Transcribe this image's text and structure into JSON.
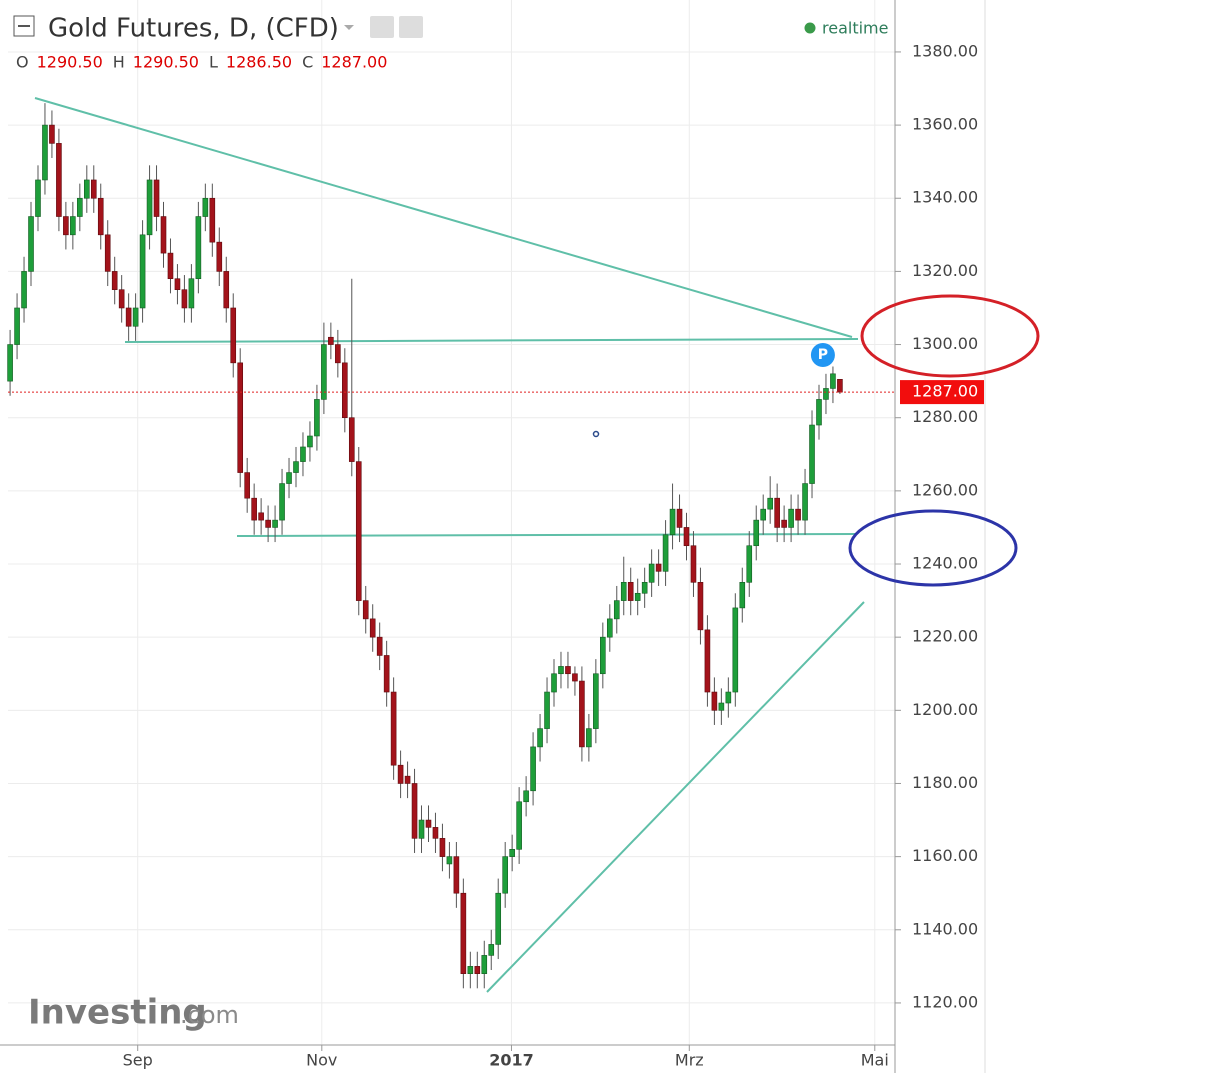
{
  "chart_data": {
    "type": "candlestick",
    "title": "Gold Futures, D, (CFD)",
    "status": "realtime",
    "ohlc_legend": [
      [
        "O",
        "1290.50"
      ],
      [
        "H",
        "1290.50"
      ],
      [
        "L",
        "1286.50"
      ],
      [
        "C",
        "1287.00"
      ]
    ],
    "last_price": {
      "value": 1287,
      "label": "1287.00"
    },
    "marker": "P",
    "watermark": [
      "Investing",
      ".com"
    ],
    "up_color": "#1e9e3a",
    "down_color": "#a3131b",
    "grid": true,
    "ylim": [
      1108.5,
      1394.2
    ],
    "yticks": [
      {
        "value": 1120,
        "label": "1120.00"
      },
      {
        "value": 1140,
        "label": "1140.00"
      },
      {
        "value": 1160,
        "label": "1160.00"
      },
      {
        "value": 1180,
        "label": "1180.00"
      },
      {
        "value": 1200,
        "label": "1200.00"
      },
      {
        "value": 1220,
        "label": "1220.00"
      },
      {
        "value": 1240,
        "label": "1240.00"
      },
      {
        "value": 1260,
        "label": "1260.00"
      },
      {
        "value": 1280,
        "label": "1280.00"
      },
      {
        "value": 1300,
        "label": "1300.00"
      },
      {
        "value": 1320,
        "label": "1320.00"
      },
      {
        "value": 1340,
        "label": "1340.00"
      },
      {
        "value": 1360,
        "label": "1360.00"
      },
      {
        "value": 1380,
        "label": "1380.00"
      }
    ],
    "xlim": [
      -0.3,
      126.9
    ],
    "xticks": [
      {
        "value": 18.3,
        "label": "Sep"
      },
      {
        "value": 44.7,
        "label": "Nov"
      },
      {
        "value": 71.9,
        "label": "2017"
      },
      {
        "value": 97.4,
        "label": "Mrz"
      },
      {
        "value": 124,
        "label": "Mai"
      }
    ],
    "candles": [
      [
        1290,
        1304,
        1286,
        1300
      ],
      [
        1300,
        1314,
        1296,
        1310
      ],
      [
        1310,
        1324,
        1306,
        1320
      ],
      [
        1320,
        1339,
        1316,
        1335
      ],
      [
        1335,
        1349,
        1331,
        1345
      ],
      [
        1345,
        1366,
        1341,
        1360
      ],
      [
        1360,
        1364,
        1351,
        1355
      ],
      [
        1355,
        1359,
        1331,
        1335
      ],
      [
        1335,
        1339,
        1326,
        1330
      ],
      [
        1330,
        1339,
        1326,
        1335
      ],
      [
        1335,
        1344,
        1331,
        1340
      ],
      [
        1340,
        1349,
        1336,
        1345
      ],
      [
        1345,
        1349,
        1336,
        1340
      ],
      [
        1340,
        1344,
        1326,
        1330
      ],
      [
        1330,
        1334,
        1316,
        1320
      ],
      [
        1320,
        1324,
        1311,
        1315
      ],
      [
        1315,
        1319,
        1306,
        1310
      ],
      [
        1310,
        1314,
        1301,
        1305
      ],
      [
        1305,
        1314,
        1301,
        1310
      ],
      [
        1310,
        1334,
        1306,
        1330
      ],
      [
        1330,
        1349,
        1326,
        1345
      ],
      [
        1345,
        1349,
        1331,
        1335
      ],
      [
        1335,
        1339,
        1321,
        1325
      ],
      [
        1325,
        1329,
        1314,
        1318
      ],
      [
        1318,
        1322,
        1311,
        1315
      ],
      [
        1315,
        1319,
        1306,
        1310
      ],
      [
        1310,
        1322,
        1306,
        1318
      ],
      [
        1318,
        1339,
        1314,
        1335
      ],
      [
        1335,
        1344,
        1331,
        1340
      ],
      [
        1340,
        1344,
        1324,
        1328
      ],
      [
        1328,
        1332,
        1316,
        1320
      ],
      [
        1320,
        1324,
        1306,
        1310
      ],
      [
        1310,
        1314,
        1291,
        1295
      ],
      [
        1295,
        1299,
        1261,
        1265
      ],
      [
        1265,
        1269,
        1254,
        1258
      ],
      [
        1258,
        1262,
        1248,
        1252
      ],
      [
        1254,
        1258,
        1248,
        1252
      ],
      [
        1252,
        1256,
        1246,
        1250
      ],
      [
        1250,
        1256,
        1246,
        1252
      ],
      [
        1252,
        1266,
        1248,
        1262
      ],
      [
        1262,
        1269,
        1258,
        1265
      ],
      [
        1265,
        1272,
        1261,
        1268
      ],
      [
        1268,
        1276,
        1264,
        1272
      ],
      [
        1272,
        1279,
        1268,
        1275
      ],
      [
        1275,
        1289,
        1271,
        1285
      ],
      [
        1285,
        1306,
        1281,
        1300
      ],
      [
        1302,
        1306,
        1296,
        1300
      ],
      [
        1300,
        1304,
        1291,
        1295
      ],
      [
        1295,
        1299,
        1276,
        1280
      ],
      [
        1280,
        1318,
        1264,
        1268
      ],
      [
        1268,
        1272,
        1226,
        1230
      ],
      [
        1230,
        1234,
        1221,
        1225
      ],
      [
        1225,
        1229,
        1216,
        1220
      ],
      [
        1220,
        1224,
        1211,
        1215
      ],
      [
        1215,
        1219,
        1201,
        1205
      ],
      [
        1205,
        1209,
        1181,
        1185
      ],
      [
        1185,
        1189,
        1176,
        1180
      ],
      [
        1182,
        1186,
        1176,
        1180
      ],
      [
        1180,
        1184,
        1161,
        1165
      ],
      [
        1165,
        1174,
        1161,
        1170
      ],
      [
        1170,
        1174,
        1164,
        1168
      ],
      [
        1168,
        1172,
        1161,
        1165
      ],
      [
        1165,
        1169,
        1156,
        1160
      ],
      [
        1158,
        1164,
        1154,
        1160
      ],
      [
        1160,
        1164,
        1146,
        1150
      ],
      [
        1150,
        1154,
        1124,
        1128
      ],
      [
        1128,
        1134,
        1124,
        1130
      ],
      [
        1130,
        1134,
        1124,
        1128
      ],
      [
        1128,
        1137,
        1124,
        1133
      ],
      [
        1133,
        1140,
        1129,
        1136
      ],
      [
        1136,
        1154,
        1132,
        1150
      ],
      [
        1150,
        1164,
        1146,
        1160
      ],
      [
        1160,
        1166,
        1156,
        1162
      ],
      [
        1162,
        1179,
        1158,
        1175
      ],
      [
        1175,
        1182,
        1171,
        1178
      ],
      [
        1178,
        1194,
        1174,
        1190
      ],
      [
        1190,
        1199,
        1186,
        1195
      ],
      [
        1195,
        1209,
        1191,
        1205
      ],
      [
        1205,
        1214,
        1201,
        1210
      ],
      [
        1210,
        1216,
        1206,
        1212
      ],
      [
        1212,
        1216,
        1206,
        1210
      ],
      [
        1210,
        1212,
        1204,
        1208
      ],
      [
        1208,
        1212,
        1186,
        1190
      ],
      [
        1190,
        1199,
        1186,
        1195
      ],
      [
        1195,
        1214,
        1191,
        1210
      ],
      [
        1210,
        1224,
        1206,
        1220
      ],
      [
        1220,
        1229,
        1216,
        1225
      ],
      [
        1225,
        1234,
        1221,
        1230
      ],
      [
        1230,
        1242,
        1226,
        1235
      ],
      [
        1235,
        1239,
        1226,
        1230
      ],
      [
        1230,
        1236,
        1226,
        1232
      ],
      [
        1232,
        1239,
        1228,
        1235
      ],
      [
        1235,
        1244,
        1231,
        1240
      ],
      [
        1240,
        1244,
        1234,
        1238
      ],
      [
        1238,
        1252,
        1234,
        1248
      ],
      [
        1248,
        1262,
        1244,
        1255
      ],
      [
        1255,
        1259,
        1246,
        1250
      ],
      [
        1250,
        1254,
        1241,
        1245
      ],
      [
        1245,
        1249,
        1231,
        1235
      ],
      [
        1235,
        1239,
        1218,
        1222
      ],
      [
        1222,
        1226,
        1201,
        1205
      ],
      [
        1205,
        1209,
        1196,
        1200
      ],
      [
        1200,
        1206,
        1196,
        1202
      ],
      [
        1202,
        1209,
        1198,
        1205
      ],
      [
        1205,
        1232,
        1201,
        1228
      ],
      [
        1228,
        1239,
        1224,
        1235
      ],
      [
        1235,
        1249,
        1231,
        1245
      ],
      [
        1245,
        1256,
        1241,
        1252
      ],
      [
        1252,
        1259,
        1248,
        1255
      ],
      [
        1255,
        1264,
        1251,
        1258
      ],
      [
        1258,
        1262,
        1246,
        1250
      ],
      [
        1252,
        1256,
        1246,
        1250
      ],
      [
        1250,
        1259,
        1246,
        1255
      ],
      [
        1255,
        1259,
        1248,
        1252
      ],
      [
        1252,
        1266,
        1248,
        1262
      ],
      [
        1262,
        1282,
        1258,
        1278
      ],
      [
        1278,
        1289,
        1274,
        1285
      ],
      [
        1285,
        1292,
        1281,
        1288
      ],
      [
        1288,
        1294,
        1284,
        1292
      ],
      [
        1290.5,
        1290.5,
        1286.5,
        1287
      ]
    ]
  }
}
